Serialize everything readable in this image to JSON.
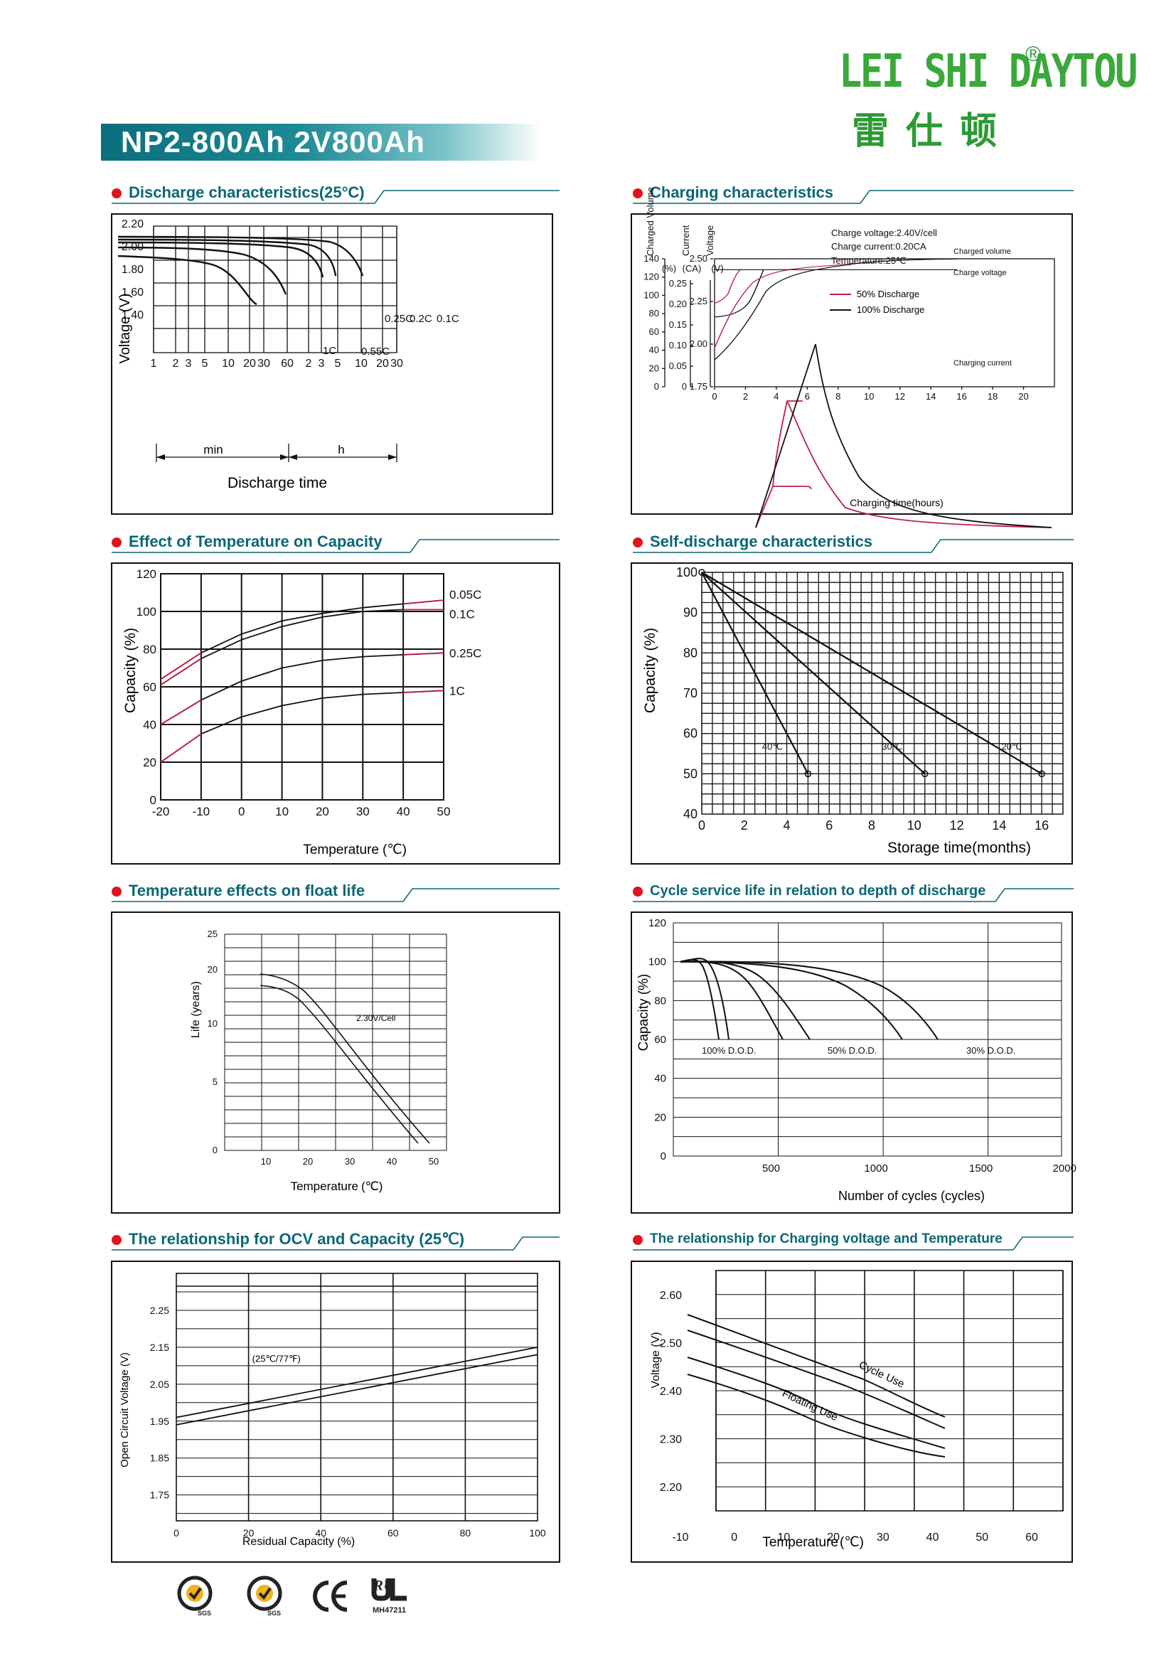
{
  "header": {
    "title": "NP2-800Ah 2V800Ah"
  },
  "logo": {
    "latin": "LEI SHI DAYTOU",
    "reg_mark": "®",
    "chinese": "雷仕顿"
  },
  "certifications": [
    {
      "name": "sgs-seal-icon",
      "text": "SGS"
    },
    {
      "name": "sgs-seal-icon",
      "text": "SGS"
    },
    {
      "name": "ce-mark-icon",
      "text": "CE"
    },
    {
      "name": "ul-mark-icon",
      "text": "MH47211"
    }
  ],
  "chart_data": [
    {
      "id": "discharge",
      "type": "line",
      "title": "Discharge characteristics(25°C)",
      "ylabel": "Voltage (V)",
      "xlabel": "Discharge time",
      "yticks": [
        "2.20",
        "2.00",
        "1.80",
        "1.60",
        "1.40"
      ],
      "xticks_min": [
        "1",
        "2",
        "3",
        "5",
        "10",
        "20",
        "30",
        "60"
      ],
      "xticks_h": [
        "2",
        "3",
        "5",
        "10",
        "20",
        "30"
      ],
      "unit_min": "min",
      "unit_h": "h",
      "series_labels": [
        "1C",
        "0.55C",
        "0.25C",
        "0.2C",
        "0.1C"
      ]
    },
    {
      "id": "charging",
      "type": "line",
      "title": "Charging characteristics",
      "axis_headers": [
        "Charged Volume",
        "Current",
        "Voltage"
      ],
      "axis_units": [
        "(%)",
        "(CA)",
        "(V)"
      ],
      "ticks_volume": [
        "140",
        "120",
        "100",
        "80",
        "60",
        "40",
        "20",
        "0"
      ],
      "ticks_current": [
        "0.25",
        "0.20",
        "0.15",
        "0.10",
        "0.05",
        "0"
      ],
      "ticks_voltage": [
        "2.50",
        "2.25",
        "2.00",
        "1.75"
      ],
      "xticks": [
        "0",
        "2",
        "4",
        "6",
        "8",
        "10",
        "12",
        "14",
        "16",
        "18",
        "20"
      ],
      "xlabel": "Charging time(hours)",
      "conditions": [
        "Charge voltage:2.40V/cell",
        "Charge current:0.20CA",
        "Temperature:25℃"
      ],
      "legend": [
        "50% Discharge",
        "100% Discharge"
      ],
      "annotations": [
        "Charged volume",
        "Charge voltage",
        "Charging current"
      ],
      "colors": {
        "fifty": "#c21f45",
        "hundred": "#111111"
      }
    },
    {
      "id": "temp-capacity",
      "type": "line",
      "title": "Effect of Temperature on Capacity",
      "ylabel": "Capacity (%)",
      "xlabel": "Temperature",
      "xunit": "(℃)",
      "yticks": [
        "120",
        "100",
        "80",
        "60",
        "40",
        "20",
        "0"
      ],
      "xticks": [
        "-20",
        "-10",
        "0",
        "10",
        "20",
        "30",
        "40",
        "50"
      ],
      "series_labels": [
        "0.05C",
        "0.1C",
        "0.25C",
        "1C"
      ],
      "series": [
        {
          "name": "0.05C",
          "x": [
            -20,
            -10,
            0,
            10,
            20,
            30,
            40,
            50
          ],
          "values": [
            64,
            78,
            88,
            95,
            99,
            102,
            104,
            106
          ]
        },
        {
          "name": "0.1C",
          "x": [
            -20,
            -10,
            0,
            10,
            20,
            30,
            40,
            50
          ],
          "values": [
            61,
            75,
            85,
            92,
            97,
            100,
            101,
            101
          ]
        },
        {
          "name": "0.25C",
          "x": [
            -20,
            -10,
            0,
            10,
            20,
            30,
            40,
            50
          ],
          "values": [
            40,
            53,
            63,
            70,
            74,
            76,
            77,
            78
          ]
        },
        {
          "name": "1C",
          "x": [
            -20,
            -10,
            0,
            10,
            20,
            30,
            40,
            50
          ],
          "values": [
            20,
            35,
            44,
            50,
            54,
            56,
            57,
            58
          ]
        }
      ],
      "ylim": [
        0,
        120
      ],
      "xlim": [
        -20,
        50
      ]
    },
    {
      "id": "self-discharge",
      "type": "line",
      "title": "Self-discharge characteristics",
      "ylabel": "Capacity (%)",
      "xlabel": "Storage time(months)",
      "yticks": [
        "100",
        "90",
        "80",
        "70",
        "60",
        "50",
        "40"
      ],
      "xticks": [
        "0",
        "2",
        "4",
        "6",
        "8",
        "10",
        "12",
        "14",
        "16"
      ],
      "series": [
        {
          "name": "40℃",
          "x": [
            0,
            5
          ],
          "values": [
            100,
            50
          ]
        },
        {
          "name": "30℃",
          "x": [
            0,
            10.5
          ],
          "values": [
            100,
            50
          ]
        },
        {
          "name": "20℃",
          "x": [
            0,
            16
          ],
          "values": [
            100,
            50
          ]
        }
      ],
      "ylim": [
        40,
        100
      ],
      "xlim": [
        0,
        17
      ]
    },
    {
      "id": "float-life",
      "type": "line",
      "title": "Temperature effects on float life",
      "ylabel": "Life (years)",
      "xlabel": "Temperature",
      "xunit": "(℃)",
      "yticks": [
        "25",
        "20",
        "10",
        "5",
        "0"
      ],
      "xticks": [
        "10",
        "20",
        "30",
        "40",
        "50"
      ],
      "annotation": "2.30V/Cell"
    },
    {
      "id": "cycle-life",
      "type": "line",
      "title": "Cycle service life in relation to depth of discharge",
      "ylabel": "Capacity (%)",
      "xlabel": "Number of cycles (cycles)",
      "yticks": [
        "120",
        "100",
        "80",
        "60",
        "40",
        "20",
        "0"
      ],
      "xticks": [
        "500",
        "1000",
        "1500",
        "2000"
      ],
      "series_labels": [
        "100% D.O.D.",
        "50% D.O.D.",
        "30% D.O.D."
      ],
      "ylim": [
        0,
        120
      ],
      "xlim": [
        0,
        1850
      ]
    },
    {
      "id": "ocv",
      "type": "line",
      "title": "The relationship  for OCV and Capacity (25℃)",
      "ylabel": "Open Circuit Voltage (V)",
      "xlabel": "Residual Capacity (%)",
      "yticks": [
        "2.25",
        "2.15",
        "2.05",
        "1.95",
        "1.85",
        "1.75"
      ],
      "xticks": [
        "0",
        "20",
        "40",
        "60",
        "80",
        "100"
      ],
      "annotation": "(25℃/77℉)",
      "series": [
        {
          "name": "",
          "x": [
            0,
            100
          ],
          "values": [
            1.96,
            2.15
          ]
        },
        {
          "name": "",
          "x": [
            0,
            100
          ],
          "values": [
            1.94,
            2.13
          ]
        }
      ],
      "ylim": [
        1.68,
        2.35
      ],
      "xlim": [
        0,
        100
      ]
    },
    {
      "id": "charge-voltage-temp",
      "type": "line",
      "title": "The relationship for Charging voltage and Temperature",
      "ylabel": "Voltage (V)",
      "xlabel": "Temperature",
      "xunit": "(℃)",
      "yticks": [
        "2.60",
        "2.50",
        "2.40",
        "2.30",
        "2.20"
      ],
      "xticks": [
        "-10",
        "0",
        "10",
        "20",
        "30",
        "40",
        "50",
        "60"
      ],
      "band_labels": [
        "Cycle Use",
        "Floating Use"
      ]
    }
  ]
}
